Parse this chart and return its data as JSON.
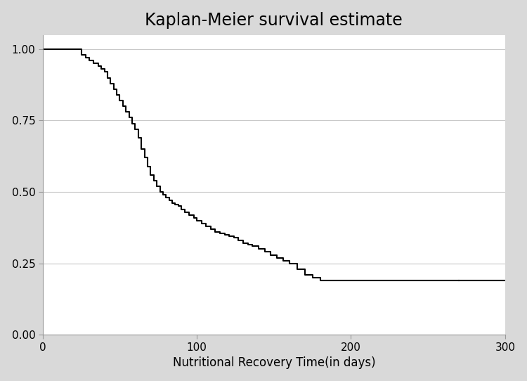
{
  "title": "Kaplan-Meier survival estimate",
  "xlabel": "Nutritional Recovery Time(in days)",
  "ylabel": "",
  "xlim": [
    0,
    300
  ],
  "ylim": [
    0,
    1.05
  ],
  "xticks": [
    0,
    100,
    200,
    300
  ],
  "yticks": [
    0.0,
    0.25,
    0.5,
    0.75,
    1.0
  ],
  "ytick_labels": [
    "0.00",
    "0.25",
    "0.50",
    "0.75",
    "1.00"
  ],
  "background_color": "#d9d9d9",
  "plot_bg_color": "#ffffff",
  "line_color": "#000000",
  "line_width": 1.5,
  "title_fontsize": 17,
  "label_fontsize": 12,
  "tick_fontsize": 11,
  "step_times": [
    0,
    20,
    25,
    28,
    30,
    33,
    36,
    38,
    40,
    42,
    44,
    46,
    48,
    50,
    52,
    54,
    56,
    58,
    60,
    62,
    64,
    66,
    68,
    70,
    72,
    74,
    76,
    78,
    80,
    82,
    84,
    86,
    88,
    90,
    92,
    95,
    98,
    100,
    103,
    106,
    109,
    112,
    115,
    118,
    121,
    124,
    127,
    130,
    133,
    136,
    140,
    144,
    148,
    152,
    156,
    160,
    165,
    170,
    175,
    180,
    270
  ],
  "step_survival": [
    1.0,
    1.0,
    0.98,
    0.97,
    0.96,
    0.95,
    0.94,
    0.93,
    0.92,
    0.9,
    0.88,
    0.86,
    0.84,
    0.82,
    0.8,
    0.78,
    0.76,
    0.74,
    0.72,
    0.69,
    0.65,
    0.62,
    0.59,
    0.56,
    0.54,
    0.52,
    0.5,
    0.49,
    0.48,
    0.47,
    0.46,
    0.455,
    0.45,
    0.44,
    0.43,
    0.42,
    0.41,
    0.4,
    0.39,
    0.38,
    0.37,
    0.36,
    0.355,
    0.35,
    0.345,
    0.34,
    0.33,
    0.32,
    0.315,
    0.31,
    0.3,
    0.29,
    0.28,
    0.27,
    0.26,
    0.25,
    0.23,
    0.21,
    0.2,
    0.19,
    0.19
  ]
}
